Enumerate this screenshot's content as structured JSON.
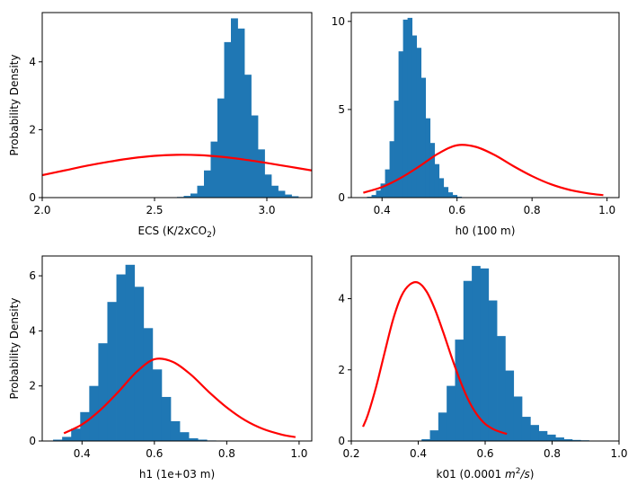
{
  "chart_data": [
    {
      "type": "histogram",
      "xlabel": "ECS (K/2xCO",
      "xlabel_sub": "2",
      "xlabel_suffix": ")",
      "ylabel": "Probability Density",
      "xlim": [
        2.0,
        3.2
      ],
      "ylim": [
        0,
        5.45
      ],
      "xticks": [
        2.0,
        2.5,
        3.0
      ],
      "xtick_labels": [
        "2.0",
        "2.5",
        "3.0"
      ],
      "yticks": [
        0,
        2,
        4
      ],
      "ytick_labels": [
        "0",
        "2",
        "4"
      ],
      "histogram": {
        "color": "#1f77b4",
        "bin_edges": [
          2.57,
          2.6,
          2.63,
          2.66,
          2.69,
          2.72,
          2.75,
          2.78,
          2.81,
          2.84,
          2.87,
          2.9,
          2.93,
          2.96,
          2.99,
          3.02,
          3.05,
          3.08,
          3.11,
          3.14,
          3.17
        ],
        "density": [
          0.01,
          0.02,
          0.05,
          0.12,
          0.35,
          0.8,
          1.65,
          2.92,
          4.58,
          5.28,
          4.98,
          3.62,
          2.42,
          1.42,
          0.68,
          0.35,
          0.2,
          0.09,
          0.04,
          0.01
        ]
      },
      "prior": {
        "color": "#ff0000",
        "x": [
          2.0,
          2.1,
          2.2,
          2.3,
          2.4,
          2.5,
          2.6,
          2.7,
          2.8,
          2.9,
          3.0,
          3.1,
          3.2
        ],
        "y": [
          0.66,
          0.8,
          0.94,
          1.06,
          1.16,
          1.23,
          1.26,
          1.25,
          1.2,
          1.12,
          1.02,
          0.91,
          0.8
        ]
      }
    },
    {
      "type": "histogram",
      "xlabel": "h0 (100 m)",
      "ylabel": "",
      "xlim": [
        0.318,
        1.032
      ],
      "ylim": [
        0,
        10.5
      ],
      "xticks": [
        0.4,
        0.6,
        0.8,
        1.0
      ],
      "xtick_labels": [
        "0.4",
        "0.6",
        "0.8",
        "1.0"
      ],
      "yticks": [
        0,
        5,
        10
      ],
      "ytick_labels": [
        "0",
        "5",
        "10"
      ],
      "histogram": {
        "color": "#1f77b4",
        "bin_edges": [
          0.36,
          0.372,
          0.384,
          0.396,
          0.408,
          0.42,
          0.432,
          0.444,
          0.456,
          0.468,
          0.48,
          0.492,
          0.504,
          0.516,
          0.528,
          0.54,
          0.552,
          0.564,
          0.576,
          0.588,
          0.6,
          0.612
        ],
        "density": [
          0.05,
          0.15,
          0.4,
          0.8,
          1.6,
          3.2,
          5.5,
          8.3,
          10.1,
          10.2,
          9.2,
          8.5,
          6.8,
          4.5,
          3.1,
          1.9,
          1.1,
          0.6,
          0.3,
          0.15,
          0.05
        ]
      },
      "prior": {
        "color": "#ff0000",
        "x": [
          0.35,
          0.4,
          0.45,
          0.5,
          0.55,
          0.6,
          0.65,
          0.7,
          0.75,
          0.8,
          0.85,
          0.9,
          0.95,
          0.99
        ],
        "y": [
          0.28,
          0.6,
          1.12,
          1.78,
          2.5,
          2.97,
          2.88,
          2.42,
          1.79,
          1.22,
          0.76,
          0.44,
          0.24,
          0.14
        ]
      }
    },
    {
      "type": "histogram",
      "xlabel": "h1 (1e+03 m)",
      "ylabel": "Probability Density",
      "xlim": [
        0.29,
        1.035
      ],
      "ylim": [
        0,
        6.72
      ],
      "xticks": [
        0.4,
        0.6,
        0.8,
        1.0
      ],
      "xtick_labels": [
        "0.4",
        "0.6",
        "0.8",
        "1.0"
      ],
      "yticks": [
        0,
        2,
        4,
        6
      ],
      "ytick_labels": [
        "0",
        "2",
        "4",
        "6"
      ],
      "histogram": {
        "color": "#1f77b4",
        "bin_edges": [
          0.32,
          0.345,
          0.37,
          0.395,
          0.42,
          0.445,
          0.47,
          0.495,
          0.52,
          0.545,
          0.57,
          0.595,
          0.62,
          0.645,
          0.67,
          0.695,
          0.72,
          0.745,
          0.77
        ],
        "density": [
          0.05,
          0.15,
          0.45,
          1.05,
          2.0,
          3.55,
          5.05,
          6.05,
          6.4,
          5.6,
          4.1,
          2.6,
          1.6,
          0.72,
          0.32,
          0.1,
          0.05,
          0.02
        ]
      },
      "prior": {
        "color": "#ff0000",
        "x": [
          0.35,
          0.4,
          0.45,
          0.5,
          0.55,
          0.6,
          0.65,
          0.7,
          0.75,
          0.8,
          0.85,
          0.9,
          0.95,
          0.99
        ],
        "y": [
          0.28,
          0.6,
          1.12,
          1.78,
          2.5,
          2.97,
          2.88,
          2.42,
          1.79,
          1.22,
          0.76,
          0.44,
          0.24,
          0.14
        ]
      }
    },
    {
      "type": "histogram",
      "xlabel": "k01 (0.0001 ",
      "xlabel_math": "m",
      "xlabel_sup": "2",
      "xlabel_math_suffix": "/s",
      "xlabel_suffix": ")",
      "ylabel": "",
      "xlim": [
        0.2,
        1.0
      ],
      "ylim": [
        0,
        5.2
      ],
      "xticks": [
        0.2,
        0.4,
        0.6,
        0.8,
        1.0
      ],
      "xtick_labels": [
        "0.2",
        "0.4",
        "0.6",
        "0.8",
        "1.0"
      ],
      "yticks": [
        0,
        2,
        4
      ],
      "ytick_labels": [
        "0",
        "2",
        "4"
      ],
      "histogram": {
        "color": "#1f77b4",
        "bin_edges": [
          0.41,
          0.435,
          0.46,
          0.485,
          0.51,
          0.535,
          0.56,
          0.585,
          0.61,
          0.635,
          0.66,
          0.685,
          0.71,
          0.735,
          0.76,
          0.785,
          0.81,
          0.835,
          0.86,
          0.885,
          0.91,
          0.935,
          0.96,
          0.985
        ],
        "density": [
          0.05,
          0.3,
          0.8,
          1.55,
          2.85,
          4.5,
          4.92,
          4.85,
          3.95,
          2.95,
          1.98,
          1.25,
          0.68,
          0.45,
          0.28,
          0.18,
          0.1,
          0.05,
          0.03,
          0.02,
          0.01,
          0.01,
          0.01
        ]
      },
      "prior": {
        "color": "#ff0000",
        "x": [
          0.235,
          0.25,
          0.275,
          0.3,
          0.325,
          0.35,
          0.375,
          0.4,
          0.425,
          0.45,
          0.475,
          0.5,
          0.525,
          0.55,
          0.575,
          0.6,
          0.625,
          0.65,
          0.665
        ],
        "y": [
          0.4,
          0.75,
          1.55,
          2.5,
          3.42,
          4.08,
          4.4,
          4.45,
          4.2,
          3.7,
          3.05,
          2.35,
          1.7,
          1.15,
          0.75,
          0.48,
          0.33,
          0.24,
          0.2
        ]
      }
    }
  ]
}
